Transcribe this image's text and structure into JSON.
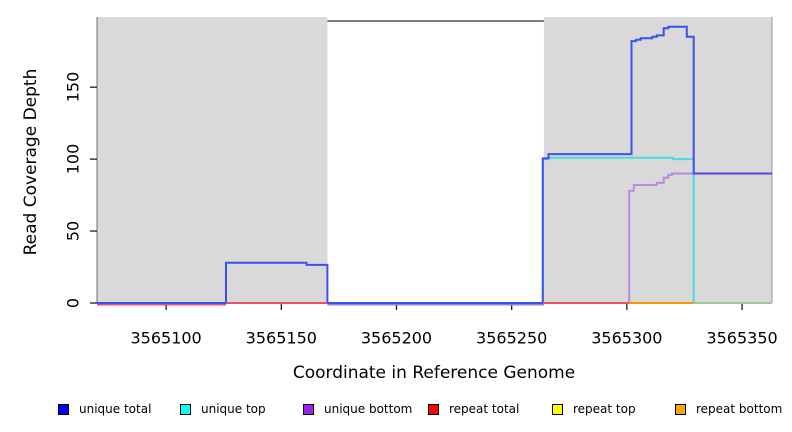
{
  "chart_data": {
    "type": "line",
    "title": "",
    "xlabel": "Coordinate in Reference Genome",
    "ylabel": "Read Coverage Depth",
    "xlim": [
      3565070,
      3565363
    ],
    "ylim": [
      0,
      196
    ],
    "x_ticks": [
      3565100,
      3565150,
      3565200,
      3565250,
      3565300,
      3565350
    ],
    "y_ticks": [
      0,
      50,
      100,
      150
    ],
    "grid": false,
    "legend_position": "bottom",
    "shade_color": "#d9d9d9",
    "box_color": "#7d7d7d",
    "shaded_regions": [
      {
        "name": "left-gray-region",
        "x0": 3565070,
        "x1": 3565170
      },
      {
        "name": "right-gray-region",
        "x0": 3565264,
        "x1": 3565363
      }
    ],
    "legend": [
      {
        "label": "unique total",
        "color": "#0000ff"
      },
      {
        "label": "unique top",
        "color": "#00ffff"
      },
      {
        "label": "unique bottom",
        "color": "#a020f0"
      },
      {
        "label": "repeat total",
        "color": "#ff0000"
      },
      {
        "label": "repeat top",
        "color": "#ffff00"
      },
      {
        "label": "repeat bottom",
        "color": "#ffa500"
      }
    ],
    "layers": [
      {
        "name": "unique-top-line",
        "color": "#45dce4",
        "dy": 0,
        "segments": [
          [
            [
              3565263.5,
              0
            ],
            [
              3565263.5,
              100
            ],
            [
              3565266,
              100
            ],
            [
              3565266,
              101
            ],
            [
              3565320,
              101
            ],
            [
              3565320,
              100
            ],
            [
              3565329,
              100
            ],
            [
              3565329,
              0
            ]
          ]
        ]
      },
      {
        "name": "unique-bottom-line",
        "color": "#b88cda",
        "dy": 0,
        "segments": [
          [
            [
              3565301,
              0
            ],
            [
              3565301,
              78
            ],
            [
              3565303,
              78
            ],
            [
              3565303,
              82
            ],
            [
              3565313,
              82
            ],
            [
              3565313,
              83.5
            ],
            [
              3565316,
              83.5
            ],
            [
              3565316,
              87
            ],
            [
              3565318,
              87
            ],
            [
              3565318,
              89
            ],
            [
              3565319.5,
              89
            ],
            [
              3565319.5,
              90
            ],
            [
              3565363,
              90
            ]
          ]
        ]
      },
      {
        "name": "unique-bottom-baseline-under-total",
        "color": "#9b7fd8",
        "dy": 1.5,
        "segments": [
          [
            [
              3565170,
              0
            ],
            [
              3565264,
              0
            ]
          ]
        ]
      },
      {
        "name": "repeat-total-under-total",
        "color": "#e8506b",
        "dy": 1.5,
        "segments": [
          [
            [
              3565070,
              0
            ],
            [
              3565126,
              0
            ]
          ]
        ]
      },
      {
        "name": "unique-total-line",
        "color": "#3b51ef",
        "dy": 0,
        "segments": [
          [
            [
              3565070,
              0
            ],
            [
              3565126,
              0
            ],
            [
              3565126,
              28
            ],
            [
              3565161,
              28
            ],
            [
              3565161,
              26.5
            ],
            [
              3565170,
              26.5
            ],
            [
              3565170,
              0
            ],
            [
              3565263.5,
              0
            ],
            [
              3565263.5,
              100.5
            ],
            [
              3565266,
              100.5
            ],
            [
              3565266,
              103.5
            ],
            [
              3565302,
              103.5
            ],
            [
              3565302,
              182
            ],
            [
              3565304,
              182
            ],
            [
              3565304,
              183
            ],
            [
              3565306,
              183
            ],
            [
              3565306,
              184
            ],
            [
              3565311,
              184
            ],
            [
              3565311,
              185
            ],
            [
              3565313,
              185
            ],
            [
              3565313,
              186
            ],
            [
              3565316,
              186
            ],
            [
              3565316,
              191
            ],
            [
              3565318,
              191
            ],
            [
              3565318,
              192
            ],
            [
              3565326,
              192
            ],
            [
              3565326,
              185
            ],
            [
              3565329,
              185
            ],
            [
              3565329,
              90
            ],
            [
              3565363,
              90
            ]
          ]
        ]
      },
      {
        "name": "repeat-total-line",
        "color": "#e8506b",
        "dy": 0,
        "segments": [
          [
            [
              3565126,
              0
            ],
            [
              3565170,
              0
            ]
          ],
          [
            [
              3565263.5,
              0
            ],
            [
              3565301,
              0
            ]
          ]
        ]
      },
      {
        "name": "repeat-bottom-line",
        "color": "#ff9100",
        "dy": 0,
        "segments": [
          [
            [
              3565301,
              0
            ],
            [
              3565329,
              0
            ]
          ]
        ]
      },
      {
        "name": "repeat-top-over-unique-top-line",
        "color": "#98cd92",
        "dy": 0,
        "segments": [
          [
            [
              3565329,
              0
            ],
            [
              3565363,
              0
            ]
          ]
        ]
      },
      {
        "name": "unique-total-bottom-overlap-line",
        "color": "#5b40df",
        "dy": 0,
        "segments": [
          [
            [
              3565329,
              90
            ],
            [
              3565363,
              90
            ]
          ]
        ]
      }
    ]
  }
}
